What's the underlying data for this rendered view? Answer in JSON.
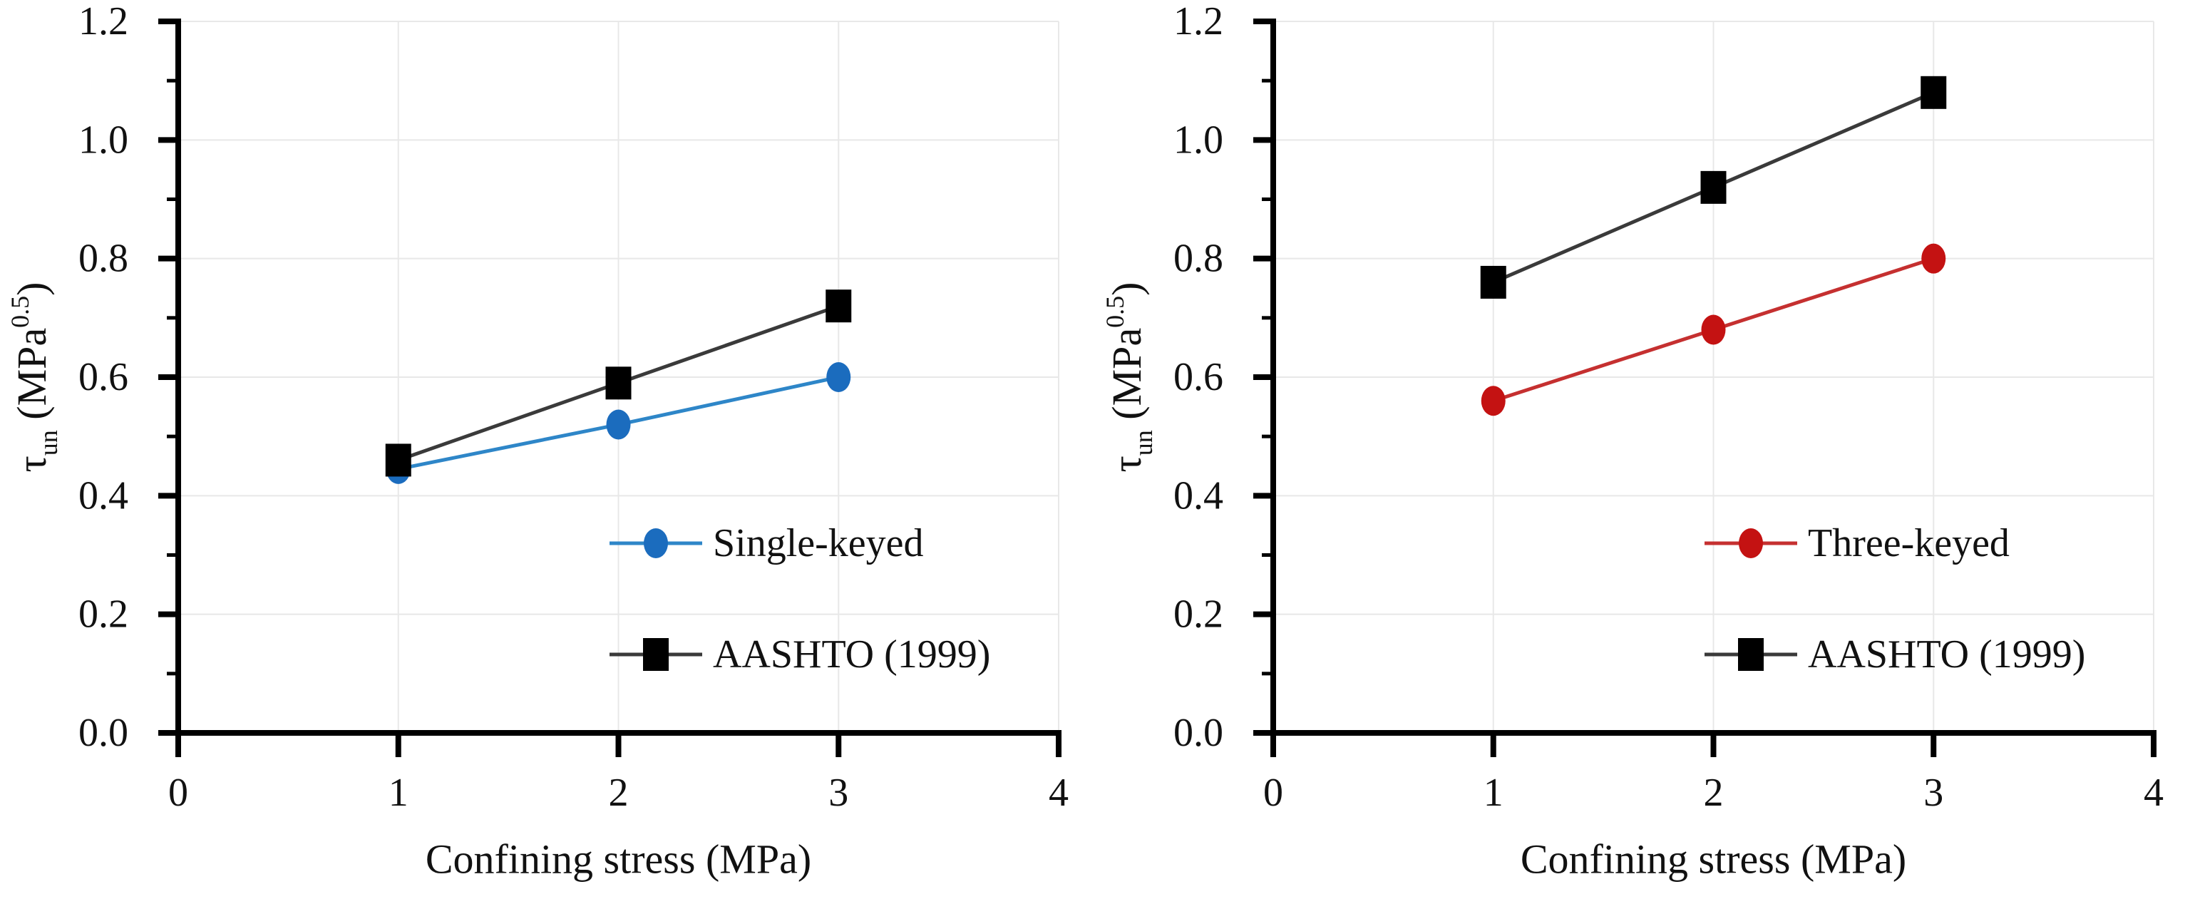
{
  "figure": {
    "background": "#ffffff",
    "text_color": "#111111"
  },
  "chart_data": [
    {
      "type": "line",
      "title": "",
      "xlabel": "Confining stress (MPa)",
      "ylabel": "τun (MPa^0.5)",
      "ylabel_parts": [
        {
          "t": "τ",
          "s": "n"
        },
        {
          "t": "un",
          "s": "sub"
        },
        {
          "t": " (MPa",
          "s": "n"
        },
        {
          "t": "0.5",
          "s": "sup"
        },
        {
          "t": ")",
          "s": "n"
        }
      ],
      "xlim": [
        0,
        4
      ],
      "ylim": [
        0,
        1.2
      ],
      "x_ticks": [
        {
          "v": 0,
          "label": "0"
        },
        {
          "v": 1,
          "label": "1"
        },
        {
          "v": 2,
          "label": "2"
        },
        {
          "v": 3,
          "label": "3"
        },
        {
          "v": 4,
          "label": "4"
        }
      ],
      "y_ticks": [
        {
          "v": 0.0,
          "label": "0.0"
        },
        {
          "v": 0.2,
          "label": "0.2"
        },
        {
          "v": 0.4,
          "label": "0.4"
        },
        {
          "v": 0.6,
          "label": "0.6"
        },
        {
          "v": 0.8,
          "label": "0.8"
        },
        {
          "v": 1.0,
          "label": "1.0"
        },
        {
          "v": 1.2,
          "label": "1.2"
        }
      ],
      "y_minor_ticks": [
        0.1,
        0.3,
        0.5,
        0.7,
        0.9,
        1.1
      ],
      "x_gridlines": [
        1,
        2,
        3,
        4
      ],
      "y_gridlines": [
        0.2,
        0.4,
        0.6,
        0.8,
        1.0,
        1.2
      ],
      "grid_on": true,
      "grid_color": "#e8e8e8",
      "axis_color": "#000000",
      "legend_position": "inside-lower-right",
      "series": [
        {
          "name": "Single-keyed",
          "marker": "circle",
          "color": "#1b6cbe",
          "line_color": "#2e86c8",
          "x": [
            1,
            2,
            3
          ],
          "y": [
            0.445,
            0.52,
            0.6
          ]
        },
        {
          "name": "AASHTO (1999)",
          "marker": "square",
          "color": "#000000",
          "line_color": "#3a3a3a",
          "x": [
            1,
            2,
            3
          ],
          "y": [
            0.46,
            0.59,
            0.72
          ]
        }
      ]
    },
    {
      "type": "line",
      "title": "",
      "xlabel": "Confining stress (MPa)",
      "ylabel": "τun (MPa^0.5)",
      "ylabel_parts": [
        {
          "t": "τ",
          "s": "n"
        },
        {
          "t": "un",
          "s": "sub"
        },
        {
          "t": " (MPa",
          "s": "n"
        },
        {
          "t": "0.5",
          "s": "sup"
        },
        {
          "t": ")",
          "s": "n"
        }
      ],
      "xlim": [
        0,
        4
      ],
      "ylim": [
        0,
        1.2
      ],
      "x_ticks": [
        {
          "v": 0,
          "label": "0"
        },
        {
          "v": 1,
          "label": "1"
        },
        {
          "v": 2,
          "label": "2"
        },
        {
          "v": 3,
          "label": "3"
        },
        {
          "v": 4,
          "label": "4"
        }
      ],
      "y_ticks": [
        {
          "v": 0.0,
          "label": "0.0"
        },
        {
          "v": 0.2,
          "label": "0.2"
        },
        {
          "v": 0.4,
          "label": "0.4"
        },
        {
          "v": 0.6,
          "label": "0.6"
        },
        {
          "v": 0.8,
          "label": "0.8"
        },
        {
          "v": 1.0,
          "label": "1.0"
        },
        {
          "v": 1.2,
          "label": "1.2"
        }
      ],
      "y_minor_ticks": [
        0.1,
        0.3,
        0.5,
        0.7,
        0.9,
        1.1
      ],
      "x_gridlines": [
        1,
        2,
        3,
        4
      ],
      "y_gridlines": [
        0.2,
        0.4,
        0.6,
        0.8,
        1.0,
        1.2
      ],
      "grid_on": true,
      "grid_color": "#e8e8e8",
      "axis_color": "#000000",
      "legend_position": "inside-lower-right",
      "series": [
        {
          "name": "Three-keyed",
          "marker": "circle",
          "color": "#c41212",
          "line_color": "#c53030",
          "x": [
            1,
            2,
            3
          ],
          "y": [
            0.56,
            0.68,
            0.8
          ]
        },
        {
          "name": "AASHTO (1999)",
          "marker": "square",
          "color": "#000000",
          "line_color": "#3a3a3a",
          "x": [
            1,
            2,
            3
          ],
          "y": [
            0.76,
            0.92,
            1.08
          ]
        }
      ]
    }
  ]
}
